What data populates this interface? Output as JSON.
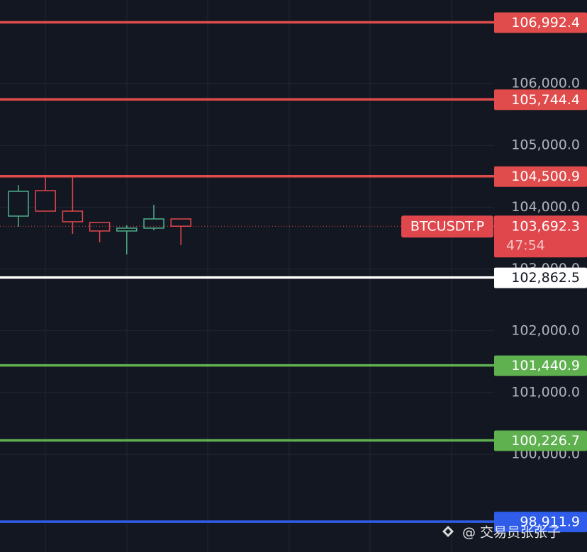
{
  "chart_data": {
    "type": "candlestick",
    "symbol": "BTCUSDT.P",
    "countdown": "47:54",
    "last_price": {
      "value": 103692.3,
      "label": "103,692.3"
    },
    "categories": [
      null,
      null,
      null,
      null,
      null,
      null,
      null
    ],
    "open": [
      103856,
      104268,
      103936,
      103752,
      103615,
      103661,
      103810
    ],
    "high": [
      104360,
      104498,
      104486,
      103752,
      103706,
      104039,
      103810
    ],
    "low": [
      103683,
      103936,
      103569,
      103431,
      103236,
      103626,
      103385
    ],
    "close": [
      104257,
      103936,
      103764,
      103615,
      103661,
      103810,
      103692.3
    ],
    "up_color": "#4caf8a",
    "down_color": "#e0474c",
    "ylim": [
      98420,
      107353
    ],
    "yticks": [
      {
        "value": 100000,
        "label": "100,000.0"
      },
      {
        "value": 101000,
        "label": "101,000.0"
      },
      {
        "value": 102000,
        "label": "102,000.0"
      },
      {
        "value": 103000,
        "label": "103,000.0"
      },
      {
        "value": 104000,
        "label": "104,000.0"
      },
      {
        "value": 105000,
        "label": "105,000.0"
      },
      {
        "value": 106000,
        "label": "106,000.0"
      }
    ],
    "grid": true,
    "levels": [
      {
        "value": 106992.4,
        "label": "106,992.4",
        "color": "#e04b4b"
      },
      {
        "value": 105744.4,
        "label": "105,744.4",
        "color": "#e04b4b"
      },
      {
        "value": 104500.9,
        "label": "104,500.9",
        "color": "#e04b4b"
      },
      {
        "value": 102862.5,
        "label": "102,862.5",
        "color": "#ffffff"
      },
      {
        "value": 101440.9,
        "label": "101,440.9",
        "color": "#5fb04f"
      },
      {
        "value": 100226.7,
        "label": "100,226.7",
        "color": "#5fb04f"
      },
      {
        "value": 98911.9,
        "label": "98,911.9",
        "color": "#2f5ce8"
      }
    ]
  },
  "watermark": "@ 交易员张张子"
}
